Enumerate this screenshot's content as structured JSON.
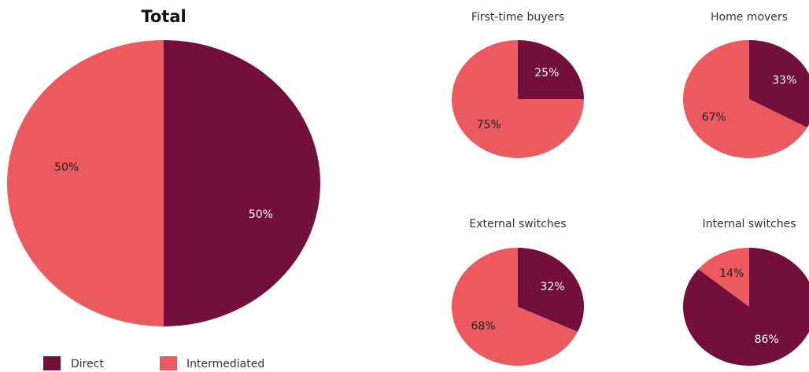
{
  "legend": {
    "labels": [
      "Direct",
      "Intermediated"
    ],
    "colors": [
      "#730f3b",
      "#ea5a5e"
    ]
  },
  "chart_data": [
    {
      "type": "pie",
      "title": "Total",
      "values": [
        50,
        50
      ],
      "value_labels": [
        "50%",
        "50%"
      ]
    },
    {
      "type": "pie",
      "title": "First-time buyers",
      "values": [
        25,
        75
      ],
      "value_labels": [
        "25%",
        "75%"
      ]
    },
    {
      "type": "pie",
      "title": "Home movers",
      "values": [
        33,
        67
      ],
      "value_labels": [
        "33%",
        "67%"
      ]
    },
    {
      "type": "pie",
      "title": "External switches",
      "values": [
        32,
        68
      ],
      "value_labels": [
        "32%",
        "68%"
      ]
    },
    {
      "type": "pie",
      "title": "Internal switches",
      "values": [
        86,
        14
      ],
      "value_labels": [
        "86%",
        "14%"
      ]
    }
  ]
}
